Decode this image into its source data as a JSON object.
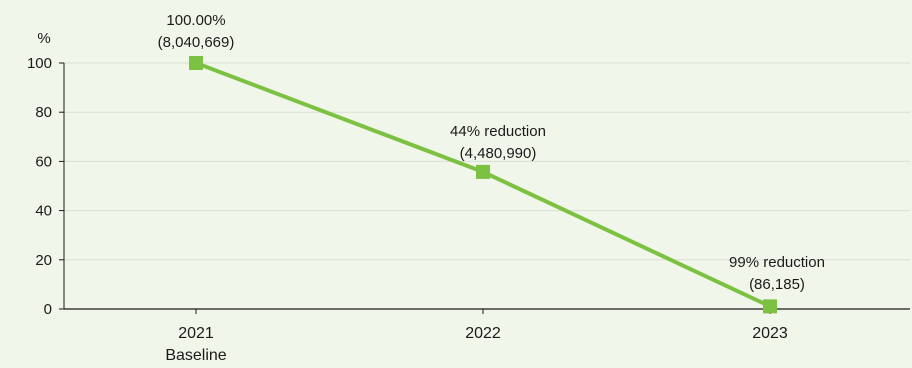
{
  "chart_data": {
    "type": "line",
    "ylabel": "%",
    "ylim": [
      0,
      100
    ],
    "yticks": [
      0,
      20,
      40,
      60,
      80,
      100
    ],
    "categories": [
      {
        "label": "2021",
        "sublabel": "Baseline"
      },
      {
        "label": "2022",
        "sublabel": ""
      },
      {
        "label": "2023",
        "sublabel": ""
      }
    ],
    "series": [
      {
        "values": [
          100,
          55.73,
          1.07
        ],
        "color": "#7dc142"
      }
    ],
    "data_labels": [
      {
        "line1": "100.00%",
        "line2": "(8,040,669)"
      },
      {
        "line1": "44% reduction",
        "line2": "(4,480,990)"
      },
      {
        "line1": "99% reduction",
        "line2": "(86,185)"
      }
    ],
    "grid": true,
    "legend": "none",
    "colors": {
      "line": "#7dc142",
      "grid": "#d9dfd2",
      "axis": "#1a1a1a",
      "background": "#f1f6ea"
    }
  }
}
